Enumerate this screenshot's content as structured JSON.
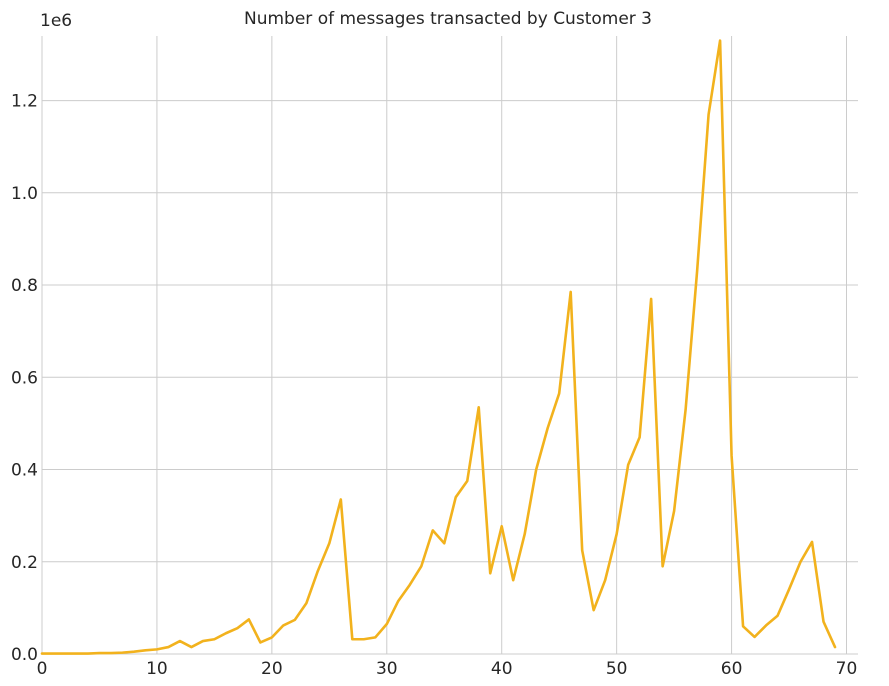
{
  "chart_data": {
    "type": "line",
    "title": "Number of messages transacted by Customer 3",
    "xlabel": "",
    "ylabel": "",
    "y_offset_label": "1e6",
    "xlim": [
      0,
      71
    ],
    "ylim": [
      0,
      1.34
    ],
    "x_ticks": [
      0,
      10,
      20,
      30,
      40,
      50,
      60,
      70
    ],
    "x_tick_labels": [
      "0",
      "10",
      "20",
      "30",
      "40",
      "50",
      "60",
      "70"
    ],
    "y_ticks": [
      0,
      0.2,
      0.4,
      0.6,
      0.8,
      1.0,
      1.2
    ],
    "y_tick_labels": [
      "0.0",
      "0.2",
      "0.4",
      "0.6",
      "0.8",
      "1.0",
      "1.2"
    ],
    "grid": true,
    "series": [
      {
        "color": "#f2b21d",
        "x": [
          0,
          1,
          2,
          3,
          4,
          5,
          6,
          7,
          8,
          9,
          10,
          11,
          12,
          13,
          14,
          15,
          16,
          17,
          18,
          19,
          20,
          21,
          22,
          23,
          24,
          25,
          26,
          27,
          28,
          29,
          30,
          31,
          32,
          33,
          34,
          35,
          36,
          37,
          38,
          39,
          40,
          41,
          42,
          43,
          44,
          45,
          46,
          47,
          48,
          49,
          50,
          51,
          52,
          53,
          54,
          55,
          56,
          57,
          58,
          59,
          60,
          61,
          62,
          63,
          64,
          65,
          66,
          67,
          68,
          69
        ],
        "y": [
          0.001,
          0.001,
          0.001,
          0.001,
          0.001,
          0.002,
          0.002,
          0.003,
          0.005,
          0.008,
          0.01,
          0.015,
          0.028,
          0.015,
          0.028,
          0.032,
          0.045,
          0.056,
          0.075,
          0.025,
          0.036,
          0.062,
          0.074,
          0.11,
          0.18,
          0.24,
          0.335,
          0.032,
          0.032,
          0.036,
          0.065,
          0.115,
          0.15,
          0.19,
          0.268,
          0.24,
          0.34,
          0.375,
          0.535,
          0.175,
          0.277,
          0.16,
          0.26,
          0.4,
          0.49,
          0.565,
          0.785,
          0.225,
          0.095,
          0.16,
          0.26,
          0.41,
          0.47,
          0.77,
          0.19,
          0.31,
          0.53,
          0.83,
          1.17,
          1.33,
          0.43,
          0.06,
          0.037,
          0.062,
          0.083,
          0.14,
          0.2,
          0.243,
          0.07,
          0.015
        ]
      }
    ]
  }
}
